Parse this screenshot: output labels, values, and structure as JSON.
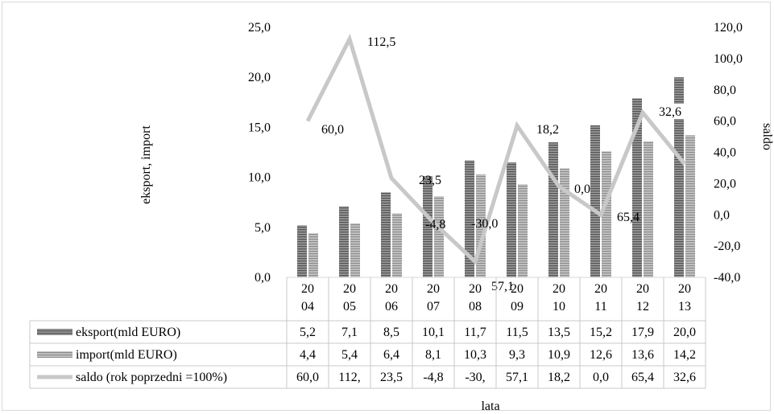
{
  "chart_data": {
    "type": "bar",
    "categories": [
      "2004",
      "2005",
      "2006",
      "2007",
      "2008",
      "2009",
      "2010",
      "2011",
      "2012",
      "2013"
    ],
    "category_labels": [
      [
        "20",
        "04"
      ],
      [
        "20",
        "05"
      ],
      [
        "20",
        "06"
      ],
      [
        "20",
        "07"
      ],
      [
        "20",
        "08"
      ],
      [
        "20",
        "09"
      ],
      [
        "20",
        "10"
      ],
      [
        "20",
        "11"
      ],
      [
        "20",
        "12"
      ],
      [
        "20",
        "13"
      ]
    ],
    "series": [
      {
        "name": "eksport(mld EURO)",
        "type": "bar",
        "axis": "left",
        "color": "#7f7f7f",
        "values": [
          5.2,
          7.1,
          8.5,
          10.1,
          11.7,
          11.5,
          13.5,
          15.2,
          17.9,
          20.0
        ],
        "table_values": [
          "5,2",
          "7,1",
          "8,5",
          "10,1",
          "11,7",
          "11,5",
          "13,5",
          "15,2",
          "17,9",
          "20,0"
        ]
      },
      {
        "name": "import(mld EURO)",
        "type": "bar",
        "axis": "left",
        "color": "#a6a6a6",
        "values": [
          4.4,
          5.4,
          6.4,
          8.1,
          10.3,
          9.3,
          10.9,
          12.6,
          13.6,
          14.2
        ],
        "table_values": [
          "4,4",
          "5,4",
          "6,4",
          "8,1",
          "10,3",
          "9,3",
          "10,9",
          "12,6",
          "13,6",
          "14,2"
        ]
      },
      {
        "name": "saldo (rok poprzedni =100%)",
        "type": "line",
        "axis": "right",
        "color": "#c8c8c8",
        "values": [
          60.0,
          112.5,
          23.5,
          -4.8,
          -30.0,
          57.1,
          18.2,
          0.0,
          65.4,
          32.6
        ],
        "point_labels": [
          "60,0",
          "112,5",
          "23,5",
          "-4,8",
          "-30,0",
          "57,1",
          "18,2",
          "0,0",
          "65,4",
          "32,6"
        ],
        "table_values": [
          "60,0",
          "112,",
          "23,5",
          "-4,8",
          "-30,",
          "57,1",
          "18,2",
          "0,0",
          "65,4",
          "32,6"
        ]
      }
    ],
    "y_left": {
      "label": "eksport, import",
      "ylim": [
        0,
        25
      ],
      "ticks": [
        0,
        5,
        10,
        15,
        20,
        25
      ],
      "tick_labels": [
        "0,0",
        "5,0",
        "10,0",
        "15,0",
        "20,0",
        "25,0"
      ]
    },
    "y_right": {
      "label": "saldo",
      "ylim": [
        -40,
        120
      ],
      "ticks": [
        -40,
        -20,
        0,
        20,
        40,
        60,
        80,
        100,
        120
      ],
      "tick_labels": [
        "-40,0",
        "-20,0",
        "0,0",
        "20,0",
        "40,0",
        "60,0",
        "80,0",
        "100,0",
        "120,0"
      ]
    },
    "xlabel": "lata",
    "grid": false,
    "legend": "data table"
  }
}
